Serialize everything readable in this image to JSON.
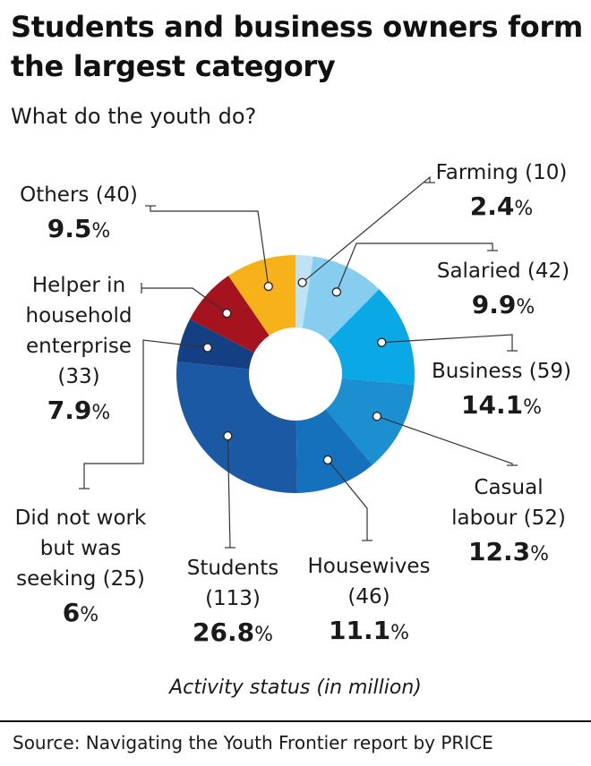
{
  "title": "Students and business owners form the largest category",
  "subtitle": "What do the youth do?",
  "note": "Activity status (in million)",
  "source": "Source:  Navigating the Youth Frontier report by PRICE",
  "chart_data": {
    "type": "pie",
    "donut": true,
    "title": "Students and business owners form the largest category",
    "subtitle": "What do the youth do?",
    "unit": "Activity status (in million)",
    "slices": [
      {
        "label": "Farming",
        "value": 10,
        "percent": 2.4,
        "color": "#bfe3f5",
        "name_lines": [
          "Farming (10)"
        ],
        "pct_text": "2.4"
      },
      {
        "label": "Salaried",
        "value": 42,
        "percent": 9.9,
        "color": "#86cdf0",
        "name_lines": [
          "Salaried (42)"
        ],
        "pct_text": "9.9"
      },
      {
        "label": "Business",
        "value": 59,
        "percent": 14.1,
        "color": "#0aa9e6",
        "name_lines": [
          "Business (59)"
        ],
        "pct_text": "14.1"
      },
      {
        "label": "Casual labour",
        "value": 52,
        "percent": 12.3,
        "color": "#1b8fd0",
        "name_lines": [
          "Casual",
          "labour (52)"
        ],
        "pct_text": "12.3"
      },
      {
        "label": "Housewives",
        "value": 46,
        "percent": 11.1,
        "color": "#1571bb",
        "name_lines": [
          "Housewives",
          "(46)"
        ],
        "pct_text": "11.1"
      },
      {
        "label": "Students",
        "value": 113,
        "percent": 26.8,
        "color": "#1c59a4",
        "name_lines": [
          "Students",
          "(113)"
        ],
        "pct_text": "26.8"
      },
      {
        "label": "Did not work but was seeking",
        "value": 25,
        "percent": 6,
        "color": "#143f82",
        "name_lines": [
          "Did not work",
          "but was",
          "seeking (25)"
        ],
        "pct_text": "6"
      },
      {
        "label": "Helper in household enterprise",
        "value": 33,
        "percent": 7.9,
        "color": "#a5141e",
        "name_lines": [
          "Helper in",
          "household",
          "enterprise",
          "(33)"
        ],
        "pct_text": "7.9"
      },
      {
        "label": "Others",
        "value": 40,
        "percent": 9.5,
        "color": "#f7b219",
        "name_lines": [
          "Others (40)"
        ],
        "pct_text": "9.5"
      }
    ]
  }
}
